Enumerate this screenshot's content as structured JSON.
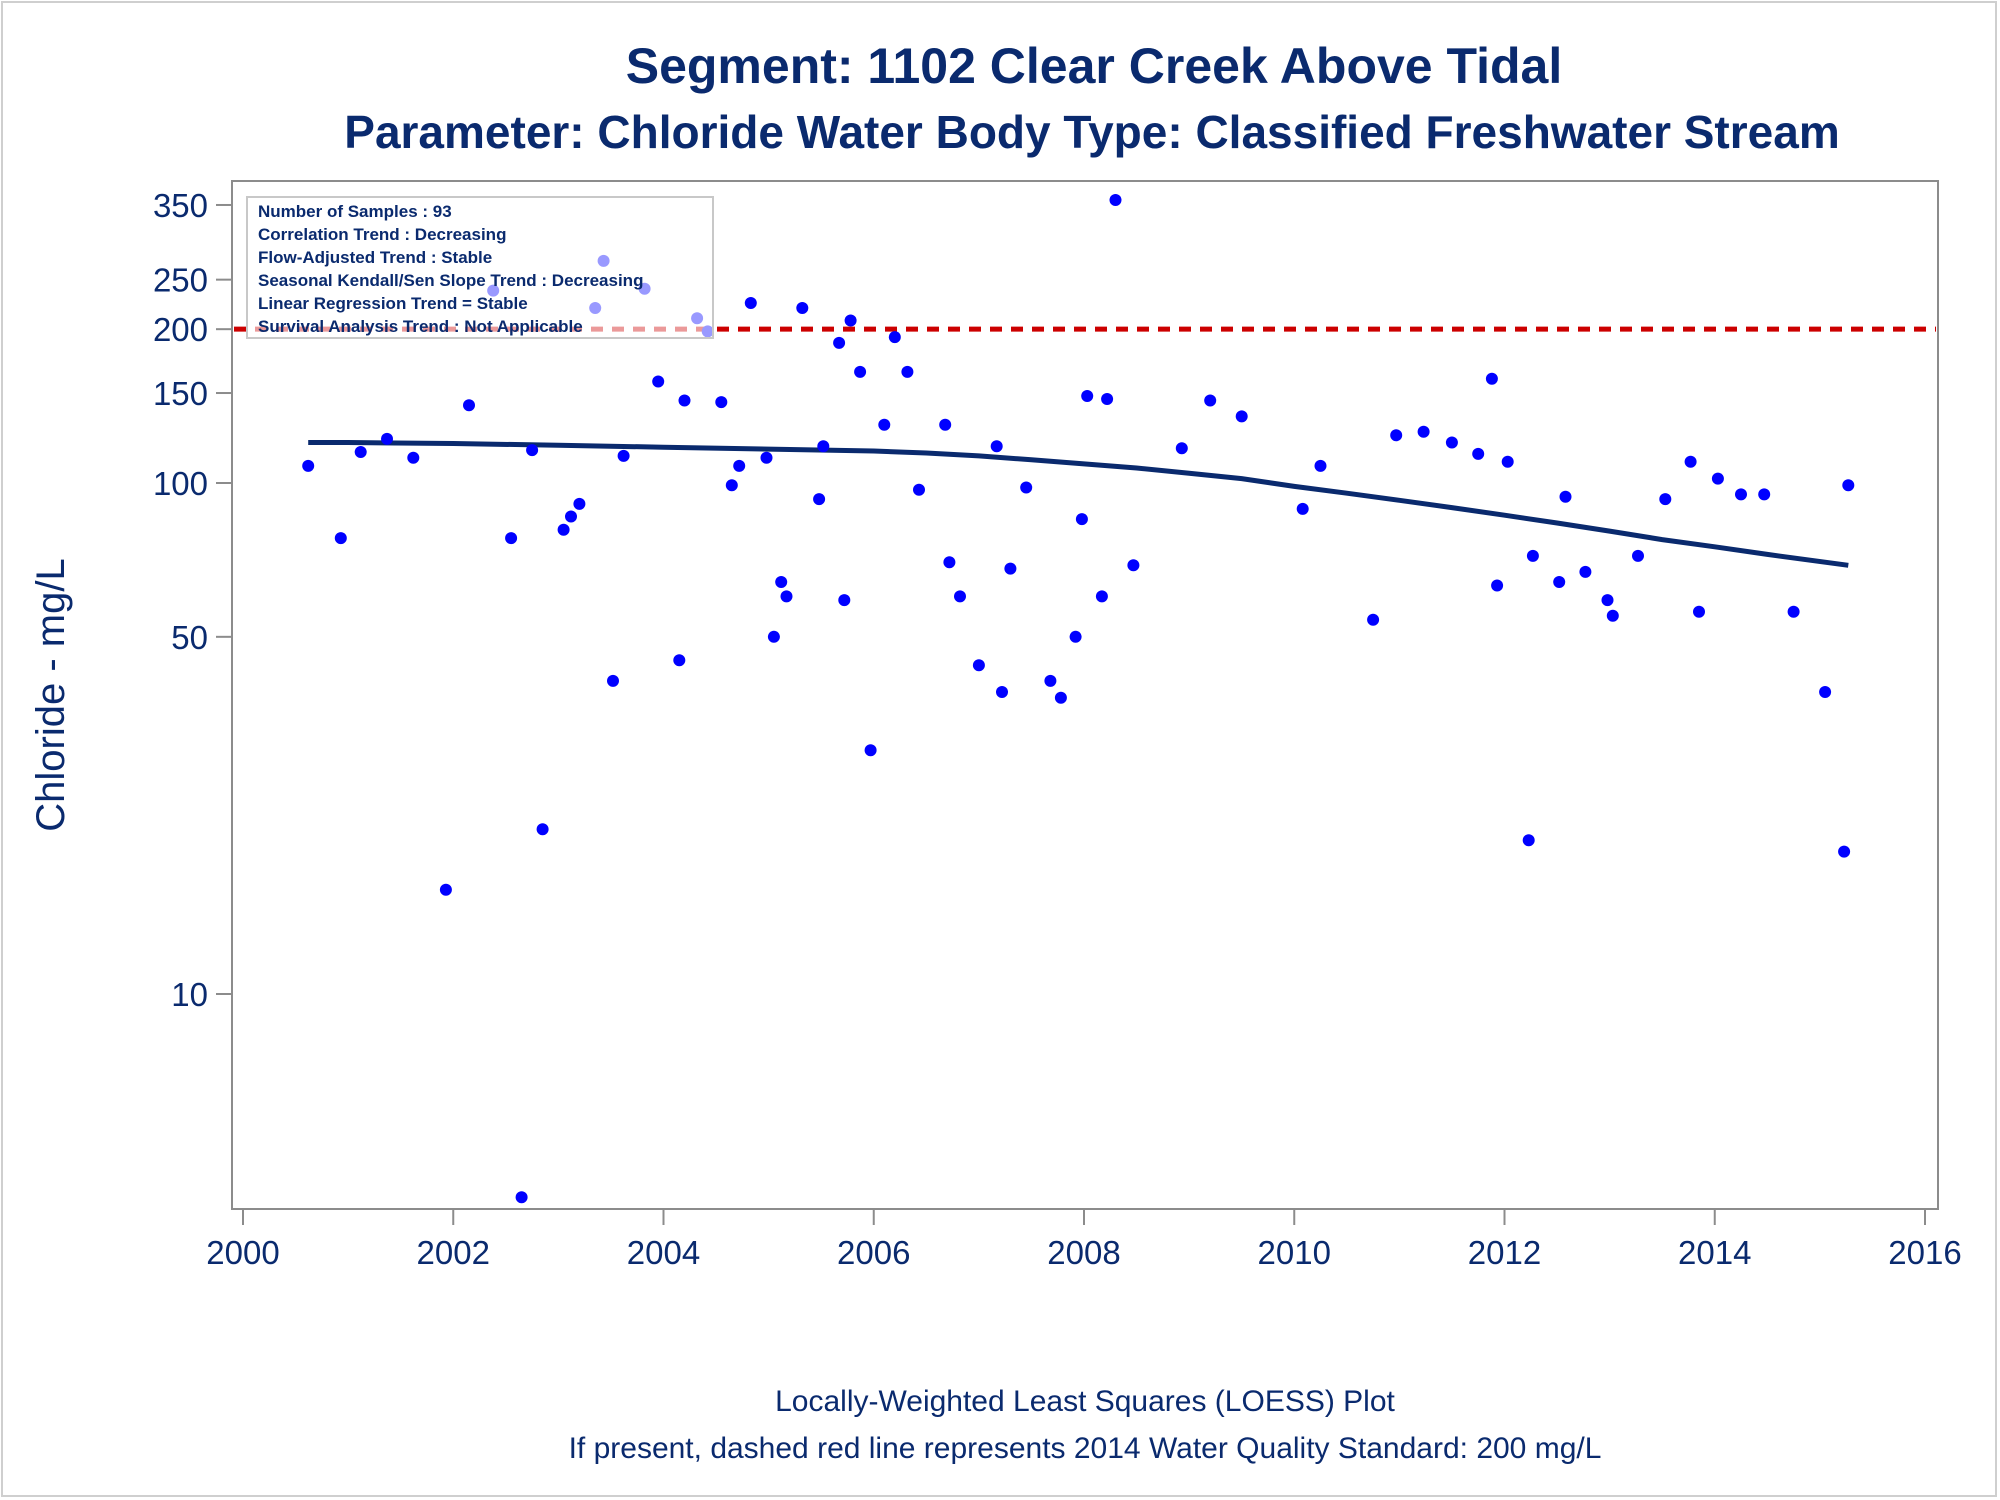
{
  "chart_data": {
    "type": "scatter",
    "title": "Segment: 1102  Clear Creek Above Tidal",
    "subtitle": "Parameter: Chloride   Water Body Type: Classified Freshwater Stream",
    "xlabel": "",
    "ylabel": "Chloride - mg/L",
    "y_scale": "log",
    "xlim": [
      2000,
      2016
    ],
    "ylim": [
      4,
      380
    ],
    "x_ticks": [
      2000,
      2002,
      2004,
      2006,
      2008,
      2010,
      2012,
      2014,
      2016
    ],
    "y_ticks": [
      10,
      50,
      100,
      150,
      200,
      250,
      350
    ],
    "grid": false,
    "legend_placement": "top-left",
    "stats_box": [
      "Number of Samples : 93",
      "Correlation Trend : Decreasing",
      "Flow-Adjusted Trend : Stable",
      "Seasonal Kendall/Sen Slope Trend : Decreasing",
      "Linear Regression Trend = Stable",
      "Survival Analysis Trend : Not Applicable"
    ],
    "standard_line": {
      "value": 200,
      "color": "#cc0000",
      "style": "dashed"
    },
    "captions": [
      "Locally-Weighted Least Squares (LOESS) Plot",
      "If present, dashed red line represents 2014 Water Quality Standard: 200    mg/L"
    ],
    "colors": {
      "points": "#0000ff",
      "loess": "#0a2a6e",
      "text": "#0a2a6e",
      "axis": "#8c8c8c"
    },
    "series": [
      {
        "type": "scatter",
        "points": [
          [
            2000.62,
            108
          ],
          [
            2000.93,
            78
          ],
          [
            2001.12,
            115
          ],
          [
            2001.37,
            122
          ],
          [
            2001.62,
            112
          ],
          [
            2001.93,
            16
          ],
          [
            2002.15,
            142
          ],
          [
            2002.38,
            238
          ],
          [
            2002.55,
            78
          ],
          [
            2002.65,
            4
          ],
          [
            2002.75,
            116
          ],
          [
            2002.85,
            21
          ],
          [
            2003.05,
            81
          ],
          [
            2003.12,
            86
          ],
          [
            2003.2,
            91
          ],
          [
            2003.35,
            220
          ],
          [
            2003.43,
            272
          ],
          [
            2003.52,
            41
          ],
          [
            2003.62,
            113
          ],
          [
            2003.82,
            240
          ],
          [
            2003.95,
            158
          ],
          [
            2004.15,
            45
          ],
          [
            2004.2,
            145
          ],
          [
            2004.32,
            210
          ],
          [
            2004.42,
            198
          ],
          [
            2004.55,
            144
          ],
          [
            2004.65,
            99
          ],
          [
            2004.72,
            108
          ],
          [
            2004.83,
            225
          ],
          [
            2004.98,
            112
          ],
          [
            2005.05,
            50
          ],
          [
            2005.12,
            64
          ],
          [
            2005.17,
            60
          ],
          [
            2005.32,
            220
          ],
          [
            2005.48,
            93
          ],
          [
            2005.52,
            118
          ],
          [
            2005.67,
            188
          ],
          [
            2005.72,
            59
          ],
          [
            2005.78,
            208
          ],
          [
            2005.87,
            165
          ],
          [
            2005.97,
            30
          ],
          [
            2006.1,
            130
          ],
          [
            2006.2,
            193
          ],
          [
            2006.32,
            165
          ],
          [
            2006.43,
            97
          ],
          [
            2006.68,
            130
          ],
          [
            2006.72,
            70
          ],
          [
            2006.82,
            60
          ],
          [
            2007.0,
            44
          ],
          [
            2007.17,
            118
          ],
          [
            2007.22,
            39
          ],
          [
            2007.3,
            68
          ],
          [
            2007.45,
            98
          ],
          [
            2007.68,
            41
          ],
          [
            2007.78,
            38
          ],
          [
            2007.92,
            50
          ],
          [
            2007.98,
            85
          ],
          [
            2008.03,
            148
          ],
          [
            2008.17,
            60
          ],
          [
            2008.22,
            146
          ],
          [
            2008.3,
            358
          ],
          [
            2008.47,
            69
          ],
          [
            2008.93,
            117
          ],
          [
            2009.2,
            145
          ],
          [
            2009.5,
            135
          ],
          [
            2010.08,
            89
          ],
          [
            2010.25,
            108
          ],
          [
            2010.75,
            54
          ],
          [
            2010.97,
            124
          ],
          [
            2011.23,
            126
          ],
          [
            2011.5,
            120
          ],
          [
            2011.75,
            114
          ],
          [
            2011.88,
            160
          ],
          [
            2011.93,
            63
          ],
          [
            2012.03,
            110
          ],
          [
            2012.23,
            20
          ],
          [
            2012.27,
            72
          ],
          [
            2012.52,
            64
          ],
          [
            2012.58,
            94
          ],
          [
            2012.77,
            67
          ],
          [
            2012.98,
            59
          ],
          [
            2013.03,
            55
          ],
          [
            2013.27,
            72
          ],
          [
            2013.53,
            93
          ],
          [
            2013.77,
            110
          ],
          [
            2013.85,
            56
          ],
          [
            2014.03,
            102
          ],
          [
            2014.25,
            95
          ],
          [
            2014.47,
            95
          ],
          [
            2014.75,
            56
          ],
          [
            2015.05,
            39
          ],
          [
            2015.23,
            19
          ],
          [
            2015.27,
            99
          ]
        ]
      },
      {
        "type": "line",
        "points": [
          [
            2000.62,
            120
          ],
          [
            2001.0,
            120
          ],
          [
            2002.0,
            119.5
          ],
          [
            2003.0,
            118.5
          ],
          [
            2004.0,
            117.5
          ],
          [
            2005.0,
            116.5
          ],
          [
            2006.0,
            115.5
          ],
          [
            2006.5,
            114.5
          ],
          [
            2007.0,
            113
          ],
          [
            2007.5,
            111
          ],
          [
            2008.0,
            109
          ],
          [
            2008.5,
            107
          ],
          [
            2009.0,
            104.5
          ],
          [
            2009.5,
            102
          ],
          [
            2010.0,
            98.5
          ],
          [
            2010.5,
            95.5
          ],
          [
            2011.0,
            92.5
          ],
          [
            2011.5,
            89.5
          ],
          [
            2012.0,
            86.5
          ],
          [
            2012.5,
            83.5
          ],
          [
            2013.0,
            80.5
          ],
          [
            2013.5,
            77.5
          ],
          [
            2014.0,
            75
          ],
          [
            2014.5,
            72.5
          ],
          [
            2015.27,
            69
          ]
        ]
      }
    ]
  }
}
